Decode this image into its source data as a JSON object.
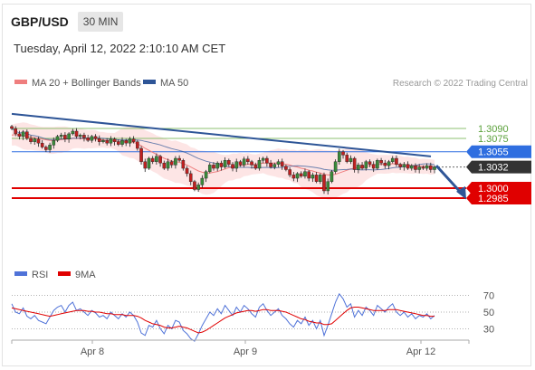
{
  "header": {
    "pair": "GBP/USD",
    "timeframe": "30 MIN",
    "datetime": "Tuesday, April 12, 2022 2:10:10 AM CET"
  },
  "legend": {
    "ma20_bb": "MA 20 + Bollinger Bands",
    "ma50": "MA 50",
    "copyright": "Research © 2022 Trading Central",
    "rsi": "RSI",
    "ma9": "9MA"
  },
  "colors": {
    "ma20": "#ef7e7e",
    "bollinger_fill": "#fde0e0",
    "ma50": "#2e5597",
    "resistance": "#8cc070",
    "pivot": "#2f6ee0",
    "support": "#e00000",
    "current": "#333333",
    "candle_up": "#3a8a3a",
    "candle_down": "#c02020",
    "rsi": "#4f72d8",
    "rsi_ma": "#e00000",
    "trendline": "#2e5597"
  },
  "chart_data": [
    {
      "type": "candlestick",
      "title": "GBP/USD",
      "timeframe": "30 MIN",
      "x_ticks": [
        "Apr 8",
        "Apr 9",
        "Apr 12"
      ],
      "ylim": [
        1.298,
        1.312
      ],
      "levels": [
        {
          "label": "1.3090",
          "value": 1.309,
          "kind": "resistance"
        },
        {
          "label": "1.3075",
          "value": 1.3075,
          "kind": "resistance"
        },
        {
          "label": "1.3055",
          "value": 1.3055,
          "kind": "pivot"
        },
        {
          "label": "1.3032",
          "value": 1.3032,
          "kind": "current"
        },
        {
          "label": "1.3000",
          "value": 1.3,
          "kind": "support"
        },
        {
          "label": "1.2985",
          "value": 1.2985,
          "kind": "support"
        }
      ],
      "candle_closes": [
        1.309,
        1.3082,
        1.3078,
        1.3085,
        1.3075,
        1.307,
        1.3074,
        1.3068,
        1.3062,
        1.3058,
        1.3065,
        1.3072,
        1.3078,
        1.308,
        1.3074,
        1.3082,
        1.3086,
        1.3078,
        1.308,
        1.3076,
        1.3072,
        1.3078,
        1.3075,
        1.307,
        1.3072,
        1.3068,
        1.3074,
        1.307,
        1.3066,
        1.3072,
        1.3068,
        1.3074,
        1.307,
        1.306,
        1.304,
        1.303,
        1.3045,
        1.304,
        1.3048,
        1.3038,
        1.303,
        1.304,
        1.3035,
        1.3045,
        1.3042,
        1.303,
        1.3022,
        1.301,
        1.2998,
        1.3005,
        1.3015,
        1.3025,
        1.3035,
        1.303,
        1.3038,
        1.3032,
        1.3042,
        1.3036,
        1.303,
        1.304,
        1.3035,
        1.3044,
        1.304,
        1.3035,
        1.303,
        1.3042,
        1.3045,
        1.3038,
        1.3032,
        1.3036,
        1.304,
        1.3033,
        1.3028,
        1.302,
        1.3015,
        1.3022,
        1.3018,
        1.3025,
        1.3015,
        1.302,
        1.301,
        1.302,
        1.2996,
        1.301,
        1.3025,
        1.304,
        1.3055,
        1.305,
        1.304,
        1.3045,
        1.3028,
        1.3035,
        1.303,
        1.304,
        1.3036,
        1.303,
        1.3042,
        1.3038,
        1.3034,
        1.304,
        1.3045,
        1.3036,
        1.3032,
        1.3036,
        1.303,
        1.3034,
        1.3028,
        1.3032,
        1.303,
        1.3034,
        1.3028,
        1.3032
      ],
      "ma20": [
        1.308,
        1.3081,
        1.308,
        1.3079,
        1.3078,
        1.3077,
        1.3076,
        1.3075,
        1.3074,
        1.3073,
        1.3072,
        1.3072,
        1.3073,
        1.3073,
        1.3074,
        1.3074,
        1.3075,
        1.3075,
        1.3075,
        1.3074,
        1.3074,
        1.3074,
        1.3074,
        1.3073,
        1.3073,
        1.3072,
        1.3072,
        1.3071,
        1.3071,
        1.307,
        1.307,
        1.307,
        1.3069,
        1.3067,
        1.3064,
        1.306,
        1.3057,
        1.3054,
        1.3051,
        1.3048,
        1.3045,
        1.3043,
        1.3041,
        1.304,
        1.3039,
        1.3037,
        1.3035,
        1.3032,
        1.3029,
        1.3026,
        1.3024,
        1.3023,
        1.3023,
        1.3024,
        1.3025,
        1.3027,
        1.3029,
        1.3031,
        1.3032,
        1.3033,
        1.3034,
        1.3035,
        1.3036,
        1.3036,
        1.3036,
        1.3037,
        1.3038,
        1.3038,
        1.3038,
        1.3038,
        1.3038,
        1.3037,
        1.3036,
        1.3035,
        1.3033,
        1.3032,
        1.303,
        1.3029,
        1.3027,
        1.3026,
        1.3024,
        1.3023,
        1.3021,
        1.302,
        1.302,
        1.3021,
        1.3023,
        1.3025,
        1.3027,
        1.3029,
        1.303,
        1.3031,
        1.3032,
        1.3033,
        1.3034,
        1.3035,
        1.3036,
        1.3036,
        1.3036,
        1.3036,
        1.3037,
        1.3036,
        1.3036,
        1.3035,
        1.3035,
        1.3034,
        1.3034,
        1.3033,
        1.3033,
        1.3033,
        1.3032,
        1.3032
      ]
    },
    {
      "type": "line",
      "title": "RSI",
      "yticks": [
        70,
        50,
        30
      ],
      "ylim": [
        20,
        80
      ],
      "series": [
        {
          "name": "RSI",
          "values": [
            60,
            50,
            48,
            55,
            45,
            42,
            46,
            40,
            38,
            36,
            44,
            52,
            56,
            58,
            50,
            58,
            62,
            52,
            54,
            50,
            46,
            52,
            49,
            44,
            46,
            42,
            50,
            46,
            42,
            48,
            44,
            50,
            46,
            38,
            25,
            22,
            34,
            32,
            40,
            30,
            24,
            34,
            30,
            40,
            38,
            28,
            24,
            18,
            15,
            24,
            34,
            42,
            50,
            46,
            54,
            48,
            58,
            52,
            46,
            56,
            50,
            58,
            54,
            48,
            44,
            56,
            60,
            52,
            46,
            50,
            54,
            46,
            42,
            36,
            32,
            40,
            36,
            44,
            34,
            40,
            30,
            40,
            22,
            34,
            48,
            62,
            72,
            66,
            56,
            60,
            44,
            52,
            46,
            56,
            52,
            46,
            58,
            54,
            50,
            56,
            60,
            50,
            46,
            50,
            44,
            48,
            42,
            46,
            44,
            48,
            42,
            46
          ]
        },
        {
          "name": "9MA",
          "values": [
            55,
            54,
            53,
            52,
            51,
            50,
            49,
            48,
            47,
            46,
            45,
            46,
            47,
            48,
            49,
            50,
            51,
            52,
            52,
            52,
            51,
            51,
            50,
            50,
            49,
            48,
            48,
            47,
            47,
            47,
            46,
            46,
            46,
            45,
            43,
            40,
            38,
            36,
            35,
            34,
            32,
            31,
            31,
            32,
            33,
            32,
            31,
            29,
            27,
            25,
            26,
            28,
            31,
            34,
            37,
            40,
            43,
            45,
            47,
            49,
            50,
            51,
            52,
            52,
            51,
            52,
            53,
            53,
            52,
            52,
            52,
            51,
            50,
            48,
            46,
            44,
            42,
            41,
            39,
            38,
            37,
            37,
            35,
            35,
            36,
            40,
            44,
            48,
            52,
            55,
            56,
            56,
            55,
            54,
            53,
            52,
            52,
            52,
            52,
            53,
            53,
            53,
            52,
            51,
            50,
            49,
            48,
            47,
            46,
            46,
            45,
            45
          ]
        }
      ]
    }
  ]
}
